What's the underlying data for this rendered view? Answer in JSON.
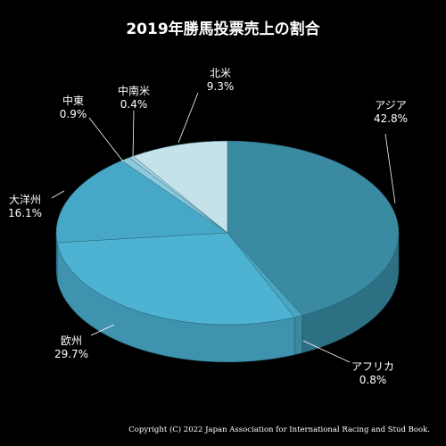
{
  "colors": {
    "background": "#000000",
    "text": "#ffffff",
    "leader": "#ffffff"
  },
  "chart_data": {
    "type": "pie",
    "title": "2019年勝馬投票売上の割合",
    "categories": [
      "アジア",
      "アフリカ",
      "欧州",
      "大洋州",
      "中東",
      "中南米",
      "北米"
    ],
    "values": [
      42.8,
      0.8,
      29.7,
      16.1,
      0.9,
      0.4,
      9.3
    ],
    "value_labels": [
      "42.8%",
      "0.8%",
      "29.7%",
      "16.1%",
      "0.9%",
      "0.4%",
      "9.3%"
    ],
    "colors": [
      "#3a8aa1",
      "#4aa6c0",
      "#4eb3d3",
      "#46a8c6",
      "#8cc9dc",
      "#a9d6e4",
      "#c5e1ea"
    ],
    "side_colors": [
      "#2d6f83",
      "#3b88a0",
      "#3f93af",
      "#3a8aa4",
      "#6fa8bb",
      "#86b5c4",
      "#9dbcc6"
    ],
    "style": "3d",
    "legend": "none",
    "start": "top",
    "direction": "clockwise"
  },
  "copyright": "Copyright (C) 2022 Japan Association for International Racing and Stud Book."
}
